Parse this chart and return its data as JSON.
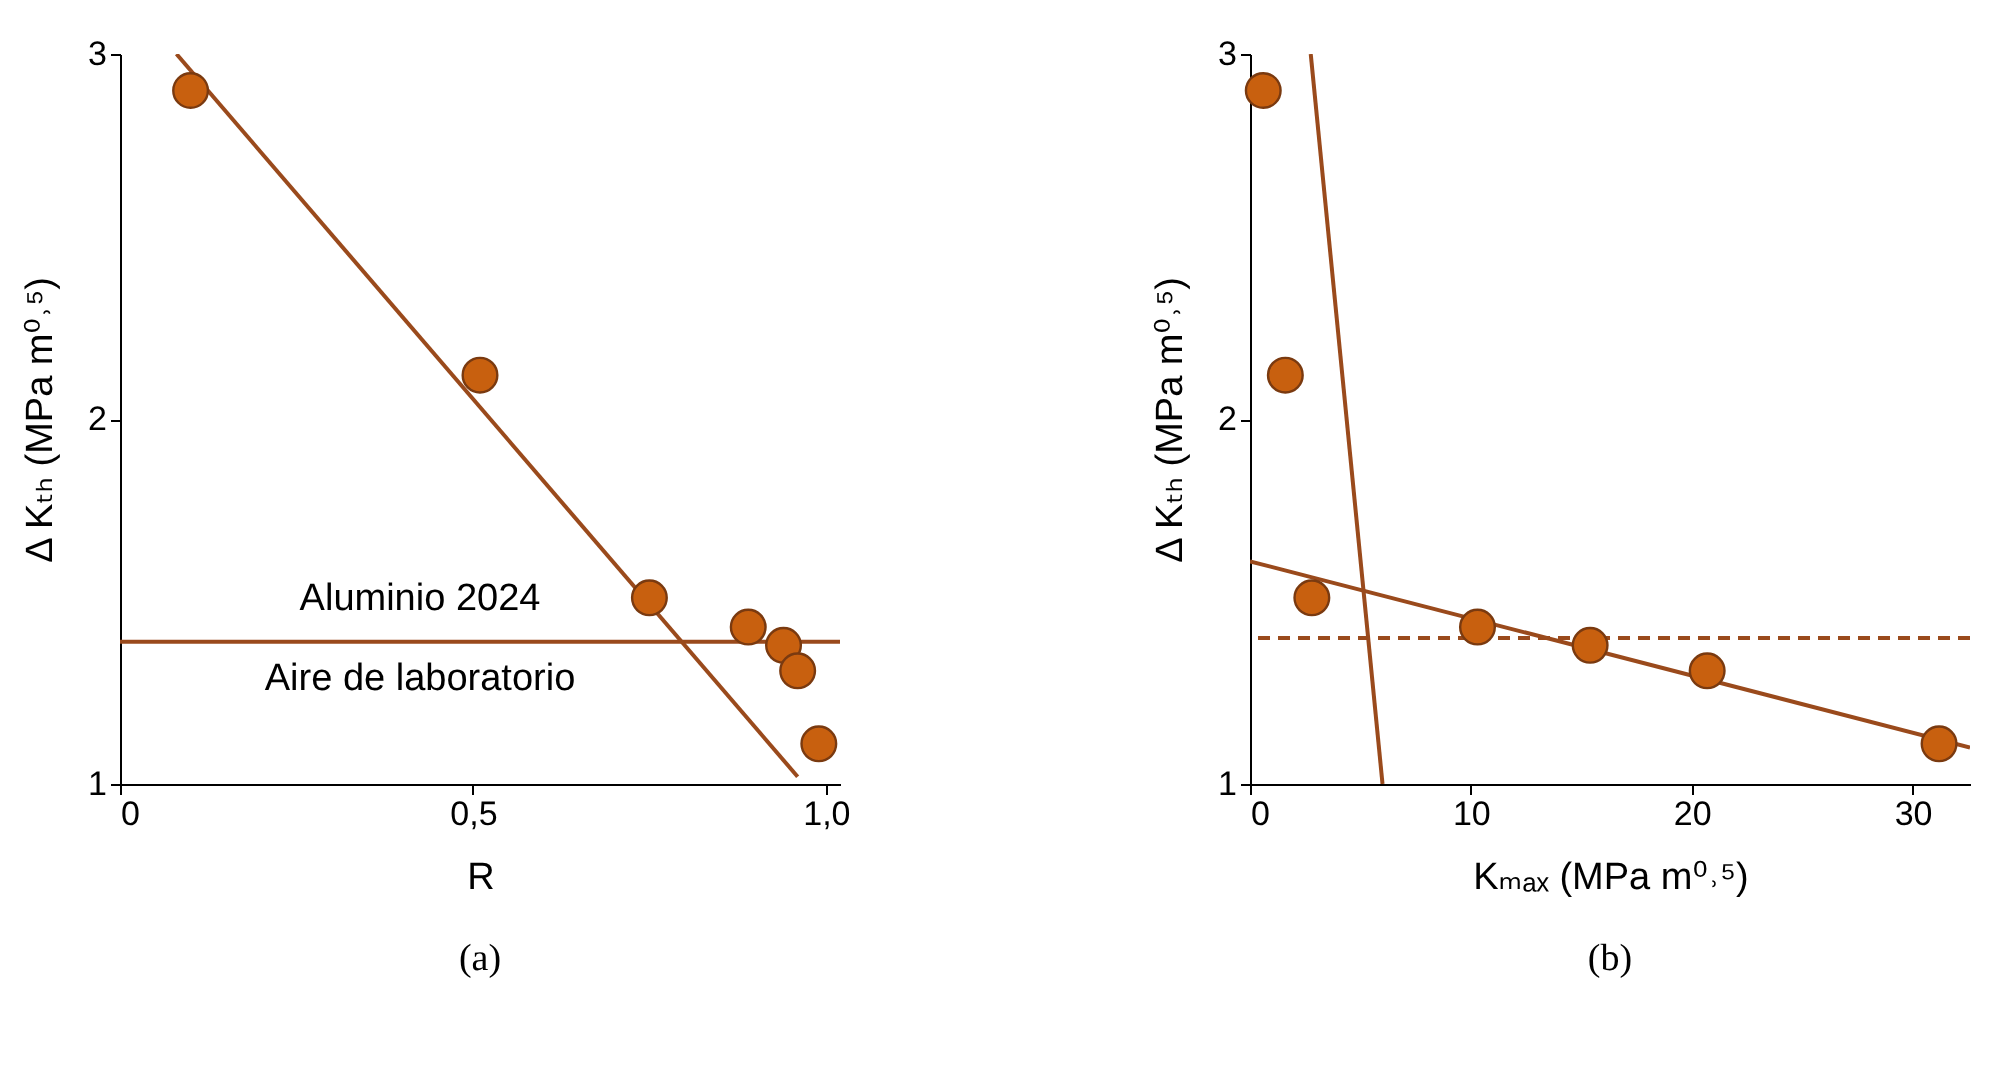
{
  "chart_data": [
    {
      "type": "scatter",
      "title": "(a)",
      "xlabel": "R",
      "ylabel": "Δ Kₜₕ (MPa m⁰˒⁵)",
      "xlim": [
        0,
        1.02
      ],
      "ylim": [
        1,
        3
      ],
      "xticks": [
        0,
        {
          "value": 0.5,
          "label": "0,5"
        },
        {
          "value": 1,
          "label": "1,0"
        }
      ],
      "yticks": [
        1,
        2,
        3
      ],
      "grid": false,
      "marker": "circle",
      "x": [
        0.1,
        0.51,
        0.75,
        0.89,
        0.94,
        0.96,
        0.99
      ],
      "series": [
        {
          "color": "#c8600f",
          "values": [
            2.9,
            2.12,
            1.51,
            1.43,
            1.38,
            1.31,
            1.11
          ]
        },
        {
          "type": "line",
          "marker": "none",
          "color": "#9a4a1c",
          "x": [
            0.08,
            0.96
          ],
          "values": [
            3,
            1.02
          ]
        }
      ],
      "ref_lines": [
        {
          "axis": "y",
          "value": 1.39,
          "color": "#9a4a1c",
          "line_style": "solid"
        }
      ],
      "annotations": [
        "Aluminio 2024",
        "Aire de laboratorio"
      ]
    },
    {
      "type": "scatter",
      "title": "(b)",
      "xlabel": "Kₘₐₓ (MPa m⁰˒⁵)",
      "ylabel": "Δ Kₜₕ (MPa m⁰˒⁵)",
      "xlim": [
        0,
        32.6
      ],
      "ylim": [
        1,
        3
      ],
      "xticks": [
        0,
        10,
        20,
        30
      ],
      "yticks": [
        1,
        2,
        3
      ],
      "grid": false,
      "marker": "circle",
      "x": [
        0.6,
        1.6,
        2.8,
        10.3,
        15.4,
        20.7,
        31.2
      ],
      "series": [
        {
          "color": "#c8600f",
          "values": [
            2.9,
            2.12,
            1.51,
            1.43,
            1.38,
            1.31,
            1.11
          ]
        },
        {
          "type": "line",
          "marker": "none",
          "color": "#9a4a1c",
          "x": [
            2.75,
            6
          ],
          "values": [
            3,
            1
          ]
        },
        {
          "type": "line",
          "marker": "none",
          "color": "#9a4a1c",
          "x": [
            0,
            32.6
          ],
          "values": [
            1.61,
            1.1
          ]
        }
      ],
      "ref_lines": [
        {
          "axis": "y",
          "value": 1.4,
          "color": "#9a4a1c",
          "line_style": "dashed"
        }
      ]
    }
  ]
}
